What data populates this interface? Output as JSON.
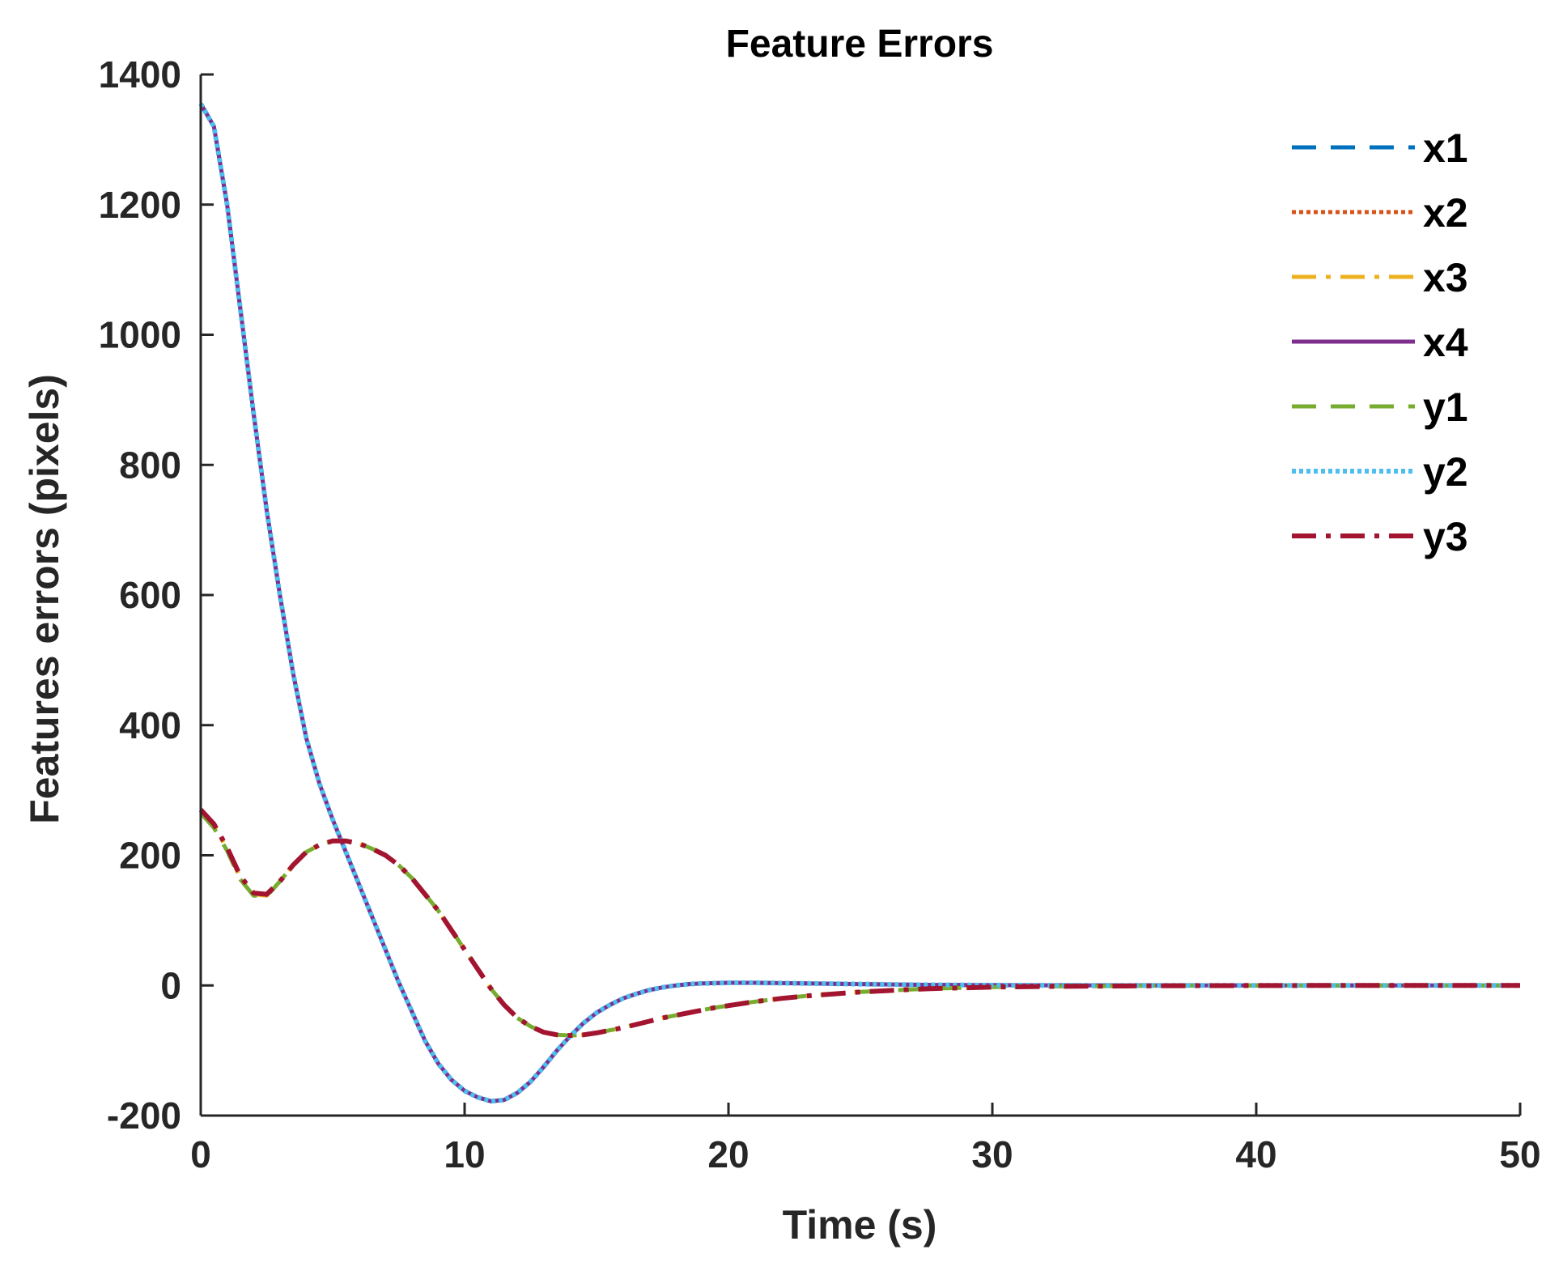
{
  "chart_data": {
    "type": "line",
    "title": "Feature Errors",
    "xlabel": "Time (s)",
    "ylabel": "Features errors (pixels)",
    "xlim": [
      0,
      50
    ],
    "ylim": [
      -200,
      1400
    ],
    "xticks": [
      0,
      10,
      20,
      30,
      40,
      50
    ],
    "yticks": [
      -200,
      0,
      200,
      400,
      600,
      800,
      1000,
      1200,
      1400
    ],
    "grid": false,
    "legend_position": "top-right",
    "x": [
      0,
      0.5,
      1,
      1.5,
      2,
      2.5,
      3,
      3.5,
      4,
      4.5,
      5,
      5.5,
      6,
      6.5,
      7,
      7.5,
      8,
      8.5,
      9,
      9.5,
      10,
      10.5,
      11,
      11.5,
      12,
      12.5,
      13,
      13.5,
      14,
      14.5,
      15,
      15.5,
      16,
      16.5,
      17,
      17.5,
      18,
      18.5,
      19,
      19.5,
      20,
      21,
      22,
      23,
      24,
      25,
      26,
      27,
      28,
      29,
      30,
      32,
      34,
      36,
      38,
      40,
      42,
      44,
      46,
      48,
      50
    ],
    "series": [
      {
        "name": "x1",
        "color": "#0072BD",
        "dash": "dashed",
        "width": 5,
        "values": [
          1355,
          1320,
          1200,
          1040,
          880,
          730,
          600,
          480,
          380,
          310,
          255,
          205,
          155,
          105,
          55,
          5,
          -40,
          -85,
          -120,
          -145,
          -162,
          -172,
          -178,
          -176,
          -165,
          -148,
          -125,
          -100,
          -78,
          -58,
          -42,
          -30,
          -20,
          -13,
          -7,
          -3,
          0,
          2,
          3,
          3.5,
          4,
          4,
          3.5,
          3,
          2.5,
          2,
          1.5,
          1,
          0.8,
          0.6,
          0.4,
          0.2,
          0.1,
          0,
          0,
          0,
          0,
          0,
          0,
          0,
          0
        ]
      },
      {
        "name": "x2",
        "color": "#D95319",
        "dash": "dotted",
        "width": 5,
        "values": [
          1355,
          1320,
          1200,
          1040,
          880,
          730,
          600,
          480,
          380,
          310,
          255,
          205,
          155,
          105,
          55,
          5,
          -40,
          -85,
          -120,
          -145,
          -162,
          -172,
          -178,
          -176,
          -165,
          -148,
          -125,
          -100,
          -78,
          -58,
          -42,
          -30,
          -20,
          -13,
          -7,
          -3,
          0,
          2,
          3,
          3.5,
          4,
          4,
          3.5,
          3,
          2.5,
          2,
          1.5,
          1,
          0.8,
          0.6,
          0.4,
          0.2,
          0.1,
          0,
          0,
          0,
          0,
          0,
          0,
          0,
          0
        ]
      },
      {
        "name": "x3",
        "color": "#EDB120",
        "dash": "dashdot",
        "width": 5,
        "values": [
          268,
          245,
          210,
          165,
          140,
          138,
          160,
          185,
          205,
          216,
          222,
          222,
          218,
          210,
          200,
          185,
          165,
          140,
          115,
          85,
          55,
          25,
          -5,
          -30,
          -50,
          -63,
          -72,
          -76,
          -77,
          -76,
          -73,
          -69,
          -65,
          -60,
          -55,
          -50,
          -46,
          -42,
          -38,
          -34,
          -31,
          -25,
          -20,
          -16,
          -13,
          -10,
          -8,
          -6,
          -4.5,
          -3.5,
          -2.5,
          -1.5,
          -1,
          -0.5,
          -0.3,
          -0.2,
          -0.1,
          0,
          0,
          0,
          0
        ]
      },
      {
        "name": "x4",
        "color": "#7E2F8E",
        "dash": "solid",
        "width": 5,
        "values": [
          1355,
          1320,
          1200,
          1040,
          880,
          730,
          600,
          480,
          380,
          310,
          255,
          205,
          155,
          105,
          55,
          5,
          -40,
          -85,
          -120,
          -145,
          -162,
          -172,
          -178,
          -176,
          -165,
          -148,
          -125,
          -100,
          -78,
          -58,
          -42,
          -30,
          -20,
          -13,
          -7,
          -3,
          0,
          2,
          3,
          3.5,
          4,
          4,
          3.5,
          3,
          2.5,
          2,
          1.5,
          1,
          0.8,
          0.6,
          0.4,
          0.2,
          0.1,
          0,
          0,
          0,
          0,
          0,
          0,
          0,
          0
        ]
      },
      {
        "name": "y1",
        "color": "#77AC30",
        "dash": "dashed",
        "width": 5,
        "values": [
          265,
          242,
          207,
          163,
          138,
          137,
          160,
          185,
          205,
          216,
          222,
          222,
          218,
          210,
          200,
          185,
          165,
          140,
          115,
          85,
          55,
          25,
          -5,
          -30,
          -50,
          -63,
          -72,
          -76,
          -77,
          -76,
          -73,
          -69,
          -65,
          -60,
          -55,
          -50,
          -46,
          -42,
          -38,
          -34,
          -31,
          -25,
          -20,
          -16,
          -13,
          -10,
          -8,
          -6,
          -4.5,
          -3.5,
          -2.5,
          -1.5,
          -1,
          -0.5,
          -0.3,
          -0.2,
          -0.1,
          0,
          0,
          0,
          0
        ]
      },
      {
        "name": "y2",
        "color": "#4DBEEE",
        "dash": "dotted",
        "width": 6,
        "values": [
          1355,
          1320,
          1200,
          1040,
          880,
          730,
          600,
          480,
          380,
          310,
          255,
          205,
          155,
          105,
          55,
          5,
          -40,
          -85,
          -120,
          -145,
          -162,
          -172,
          -178,
          -176,
          -165,
          -148,
          -125,
          -100,
          -78,
          -58,
          -42,
          -30,
          -20,
          -13,
          -7,
          -3,
          0,
          2,
          3,
          3.5,
          4,
          4,
          3.5,
          3,
          2.5,
          2,
          1.5,
          1,
          0.8,
          0.6,
          0.4,
          0.2,
          0.1,
          0,
          0,
          0,
          0,
          0,
          0,
          0,
          0
        ]
      },
      {
        "name": "y3",
        "color": "#A2142F",
        "dash": "dashdot",
        "width": 6,
        "values": [
          270,
          248,
          212,
          168,
          142,
          140,
          160,
          185,
          205,
          216,
          222,
          222,
          218,
          210,
          200,
          185,
          165,
          140,
          115,
          85,
          55,
          25,
          -5,
          -30,
          -50,
          -63,
          -72,
          -76,
          -77,
          -76,
          -73,
          -69,
          -65,
          -60,
          -55,
          -50,
          -46,
          -42,
          -38,
          -34,
          -31,
          -25,
          -20,
          -16,
          -13,
          -10,
          -8,
          -6,
          -4.5,
          -3.5,
          -2.5,
          -1.5,
          -1,
          -0.5,
          -0.3,
          -0.2,
          -0.1,
          0,
          0,
          0,
          0
        ]
      }
    ]
  }
}
